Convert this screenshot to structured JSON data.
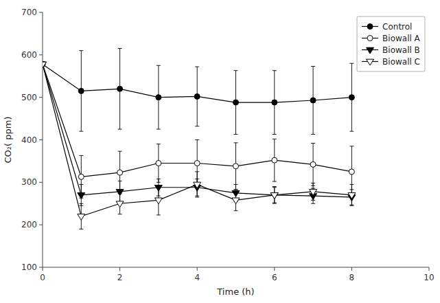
{
  "chart_data": {
    "type": "line",
    "x_label": "Time (h)",
    "y_label": "CO₂( ppm)",
    "x": [
      0,
      1,
      2,
      3,
      4,
      5,
      6,
      7,
      8
    ],
    "xlim": [
      0,
      10
    ],
    "xticks": [
      0,
      2,
      4,
      6,
      8,
      10
    ],
    "ylim": [
      100,
      700
    ],
    "yticks": [
      100,
      200,
      300,
      400,
      500,
      600,
      700
    ],
    "grid": false,
    "legend": "upper right",
    "series": [
      {
        "name": "Control",
        "color": "black",
        "marker": "circle",
        "line_style": "solid",
        "values": [
          578,
          515,
          520,
          500,
          502,
          488,
          488,
          493,
          500
        ],
        "errors": [
          5,
          95,
          95,
          75,
          70,
          75,
          75,
          80,
          80
        ]
      },
      {
        "name": "Biowall A",
        "color": "black",
        "marker": "circle-open",
        "line_style": "solid",
        "values": [
          578,
          313,
          323,
          345,
          345,
          338,
          352,
          342,
          325
        ],
        "errors": [
          5,
          50,
          50,
          45,
          55,
          55,
          50,
          50,
          60
        ]
      },
      {
        "name": "Biowall B",
        "color": "black",
        "marker": "triangle-down",
        "line_style": "solid",
        "values": [
          578,
          270,
          278,
          288,
          288,
          275,
          270,
          268,
          265
        ],
        "errors": [
          5,
          25,
          25,
          20,
          20,
          20,
          18,
          18,
          18
        ]
      },
      {
        "name": "Biowall C",
        "color": "black",
        "marker": "triangle-down-open",
        "line_style": "solid",
        "values": [
          578,
          220,
          250,
          258,
          295,
          258,
          270,
          278,
          270
        ],
        "errors": [
          5,
          30,
          25,
          35,
          30,
          25,
          20,
          20,
          25
        ]
      }
    ]
  }
}
